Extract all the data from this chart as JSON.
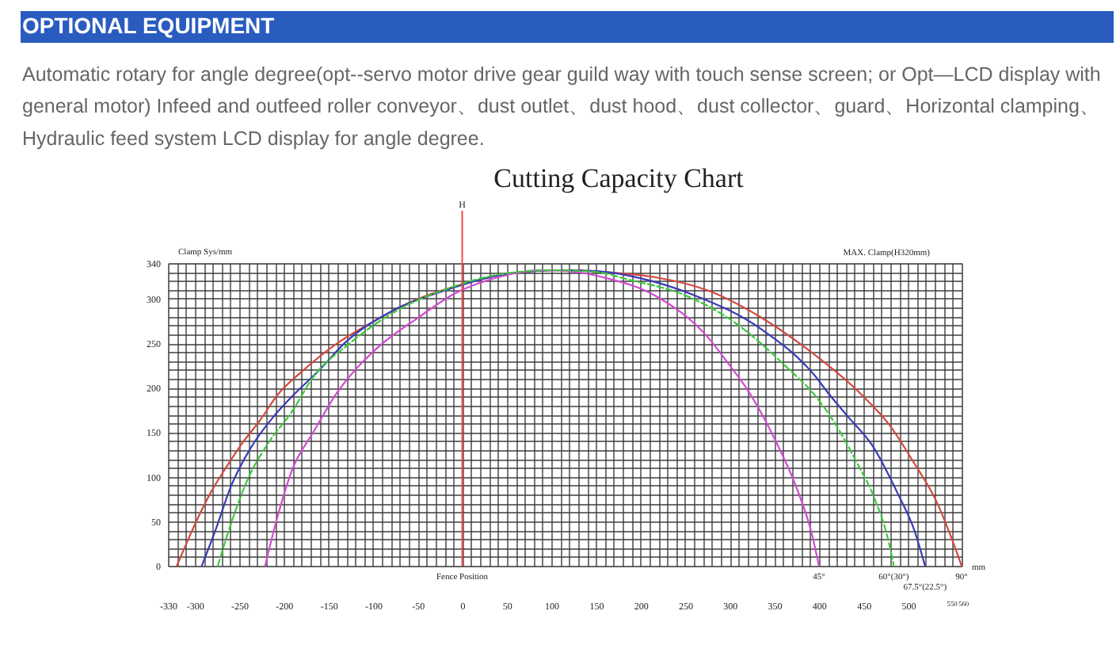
{
  "chart_data": {
    "type": "line",
    "title": "Cutting Capacity Chart",
    "xlabel": "mm",
    "ylabel": "Clamp Sys/mm",
    "annotations": [
      "OPTIONAL EQUIPMENT",
      "Automatic rotary for angle degree(opt--servo motor drive gear guild way with touch sense screen; or Opt—LCD display with general motor) Infeed and outfeed roller conveyor、dust outlet、dust hood、dust collector、guard、Horizontal clamping、Hydraulic feed system LCD display for angle degree.",
      {
        "text": "Fence Position",
        "x": 0,
        "y": 0
      },
      "MAX. Clamp(H320mm)"
    ],
    "xlim": [
      -330,
      560
    ],
    "ylim": [
      0,
      340
    ],
    "xticks": [
      -330,
      {
        "value": -320,
        "label": null
      },
      {
        "value": -310,
        "label": null
      },
      -300,
      {
        "value": -290,
        "label": null
      },
      {
        "value": -280,
        "label": null
      },
      {
        "value": -270,
        "label": null
      },
      {
        "value": -260,
        "label": null
      },
      -250,
      {
        "value": -240,
        "label": null
      },
      {
        "value": -230,
        "label": null
      },
      {
        "value": -220,
        "label": null
      },
      {
        "value": -210,
        "label": null
      },
      -200,
      {
        "value": -190,
        "label": null
      },
      {
        "value": -180,
        "label": null
      },
      {
        "value": -170,
        "label": null
      },
      {
        "value": -160,
        "label": null
      },
      -150,
      {
        "value": -140,
        "label": null
      },
      {
        "value": -130,
        "label": null
      },
      {
        "value": -120,
        "label": null
      },
      {
        "value": -110,
        "label": null
      },
      -100,
      {
        "value": -90,
        "label": null
      },
      {
        "value": -80,
        "label": null
      },
      {
        "value": -70,
        "label": null
      },
      {
        "value": -60,
        "label": null
      },
      -50,
      {
        "value": -40,
        "label": null
      },
      {
        "value": -30,
        "label": null
      },
      {
        "value": -20,
        "label": null
      },
      {
        "value": -10,
        "label": null
      },
      0,
      {
        "value": 10,
        "label": null
      },
      {
        "value": 20,
        "label": null
      },
      {
        "value": 30,
        "label": null
      },
      {
        "value": 40,
        "label": null
      },
      50,
      {
        "value": 60,
        "label": null
      },
      {
        "value": 70,
        "label": null
      },
      {
        "value": 80,
        "label": null
      },
      {
        "value": 90,
        "label": null
      },
      100,
      {
        "value": 110,
        "label": null
      },
      {
        "value": 120,
        "label": null
      },
      {
        "value": 130,
        "label": null
      },
      {
        "value": 140,
        "label": null
      },
      150,
      {
        "value": 160,
        "label": null
      },
      {
        "value": 170,
        "label": null
      },
      {
        "value": 180,
        "label": null
      },
      {
        "value": 190,
        "label": null
      },
      200,
      {
        "value": 210,
        "label": null
      },
      {
        "value": 220,
        "label": null
      },
      {
        "value": 230,
        "label": null
      },
      {
        "value": 240,
        "label": null
      },
      250,
      {
        "value": 260,
        "label": null
      },
      {
        "value": 270,
        "label": null
      },
      {
        "value": 280,
        "label": null
      },
      {
        "value": 290,
        "label": null
      },
      300,
      {
        "value": 310,
        "label": null
      },
      {
        "value": 320,
        "label": null
      },
      {
        "value": 330,
        "label": null
      },
      {
        "value": 340,
        "label": null
      },
      350,
      {
        "value": 360,
        "label": null
      },
      {
        "value": 370,
        "label": null
      },
      {
        "value": 380,
        "label": null
      },
      {
        "value": 390,
        "label": null
      },
      400,
      {
        "value": 410,
        "label": null
      },
      {
        "value": 420,
        "label": null
      },
      {
        "value": 430,
        "label": null
      },
      {
        "value": 440,
        "label": null
      },
      450,
      {
        "value": 460,
        "label": null
      },
      {
        "value": 470,
        "label": null
      },
      {
        "value": 480,
        "label": null
      },
      {
        "value": 490,
        "label": null
      },
      500,
      {
        "value": 510,
        "label": null
      },
      {
        "value": 520,
        "label": null
      },
      {
        "value": 530,
        "label": null
      },
      {
        "value": 540,
        "label": null
      },
      550,
      560
    ],
    "yticks": [
      0,
      {
        "value": 10,
        "label": null
      },
      {
        "value": 20,
        "label": null
      },
      {
        "value": 30,
        "label": null
      },
      {
        "value": 40,
        "label": null
      },
      50,
      {
        "value": 60,
        "label": null
      },
      {
        "value": 70,
        "label": null
      },
      {
        "value": 80,
        "label": null
      },
      {
        "value": 90,
        "label": null
      },
      100,
      {
        "value": 110,
        "label": null
      },
      {
        "value": 120,
        "label": null
      },
      {
        "value": 130,
        "label": null
      },
      {
        "value": 140,
        "label": null
      },
      150,
      {
        "value": 160,
        "label": null
      },
      {
        "value": 170,
        "label": null
      },
      {
        "value": 180,
        "label": null
      },
      {
        "value": 190,
        "label": null
      },
      200,
      {
        "value": 210,
        "label": null
      },
      {
        "value": 220,
        "label": null
      },
      {
        "value": 230,
        "label": null
      },
      {
        "value": 240,
        "label": null
      },
      250,
      {
        "value": 260,
        "label": null
      },
      {
        "value": 270,
        "label": null
      },
      {
        "value": 280,
        "label": null
      },
      {
        "value": 290,
        "label": null
      },
      300,
      {
        "value": 310,
        "label": null
      },
      {
        "value": 320,
        "label": null
      },
      {
        "value": 330,
        "label": null
      },
      340
    ],
    "grid": true,
    "ref_lines": [
      {
        "axis": "x",
        "value": 0,
        "label": "H",
        "color": "#f04848"
      }
    ],
    "series": [
      {
        "name": "90°",
        "color": "#d4483f",
        "x": [
          -320,
          -311,
          -299,
          -281,
          -265,
          -245,
          -227,
          -207,
          -180,
          -140,
          -100,
          -67,
          -30,
          0,
          40,
          80,
          120,
          160,
          217,
          276,
          335,
          390,
          448,
          480,
          507,
          531,
          548,
          560
        ],
        "values": [
          0,
          21,
          48,
          84,
          110,
          140,
          163,
          192,
          218,
          250,
          274,
          292,
          307,
          316,
          326,
          331,
          332,
          330,
          324,
          309,
          279,
          241,
          192,
          157,
          115,
          74,
          33,
          0
        ]
      },
      {
        "name": "67.5°(22.5°)",
        "color": "#3a3ab8",
        "x": [
          -292,
          -277,
          -259,
          -238,
          -212,
          -191,
          -160,
          -132,
          -79,
          -20,
          40,
          80,
          113,
          150,
          200,
          260,
          335,
          395,
          412,
          433,
          460,
          489,
          507,
          519
        ],
        "values": [
          0,
          39,
          90,
          131,
          167,
          190,
          220,
          250,
          286,
          309,
          326,
          331,
          332,
          331,
          323,
          304,
          266,
          214,
          192,
          167,
          135,
          80,
          40,
          0
        ]
      },
      {
        "name": "60°(30°)",
        "color": "#3cc83c",
        "line_style": "dashed",
        "x": [
          -274,
          -259,
          -241,
          -218,
          -191,
          -167,
          -126,
          -67,
          -20,
          40,
          100,
          150,
          188,
          247,
          306,
          365,
          395,
          418,
          442,
          463,
          477,
          484
        ],
        "values": [
          0,
          48,
          96,
          137,
          173,
          212,
          250,
          290,
          310,
          327,
          332,
          330,
          321,
          305,
          273,
          222,
          192,
          160,
          117,
          74,
          32,
          0
        ]
      },
      {
        "name": "45°",
        "color": "#d24ad2",
        "x": [
          -221,
          -209,
          -191,
          -167,
          -140,
          -96,
          -49,
          -8,
          40,
          90,
          128,
          158,
          217,
          276,
          300,
          321,
          341,
          353,
          374,
          392,
          400
        ],
        "values": [
          0,
          48,
          107,
          150,
          195,
          244,
          279,
          306,
          324,
          332,
          330,
          324,
          303,
          256,
          225,
          196,
          161,
          137,
          90,
          36,
          0
        ]
      }
    ]
  }
}
